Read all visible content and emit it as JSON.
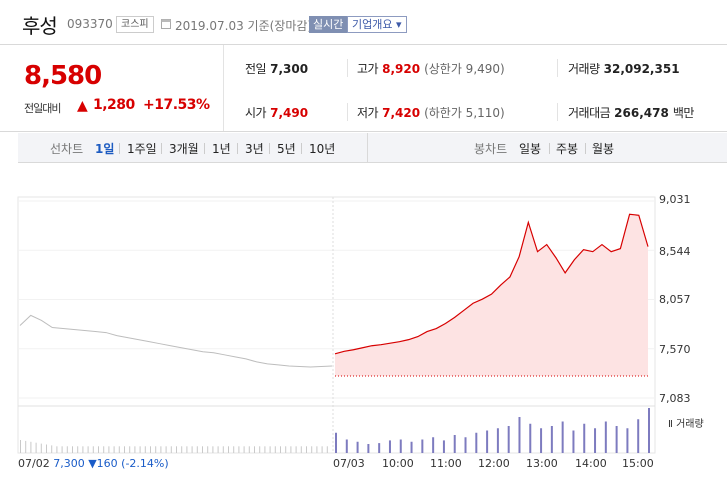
{
  "header": {
    "name": "후성",
    "code": "093370",
    "market": "코스피",
    "date": "2019.07.03",
    "date_suffix": "기준(장마감)",
    "realtime_button": "실시간",
    "company_button": "기업개요 ▾"
  },
  "quote": {
    "price": "8,580",
    "change_label": "전일대비",
    "change_arrow": "▲",
    "change_value": "1,280",
    "change_rate": "+17.53%",
    "prev_close_label": "전일",
    "prev_close": "7,300",
    "high_label": "고가",
    "high": "8,920",
    "upper_limit": "(상한가 9,490)",
    "volume_label": "거래량",
    "volume": "32,092,351",
    "open_label": "시가",
    "open": "7,490",
    "low_label": "저가",
    "low": "7,420",
    "lower_limit": "(하한가 5,110)",
    "amount_label": "거래대금",
    "amount": "266,478",
    "amount_unit": "백만"
  },
  "tabs": {
    "line_title": "선차트",
    "line_tabs": [
      "1일",
      "1주일",
      "3개월",
      "1년",
      "3년",
      "5년",
      "10년"
    ],
    "active": "1일",
    "candle_title": "봉차트",
    "candle_tabs": [
      "일봉",
      "주봉",
      "월봉"
    ]
  },
  "colors": {
    "up": "#d70000",
    "down": "#1a5cc8",
    "link": "#1c5bc1",
    "fill": "#fde3e3"
  },
  "chart_data": {
    "type": "line",
    "y_ticks": [
      "9,031",
      "8,544",
      "8,057",
      "7,570",
      "7,083"
    ],
    "ylim": [
      7083,
      9031
    ],
    "x_ticks": [
      "07/03",
      "10:00",
      "11:00",
      "12:00",
      "13:00",
      "14:00",
      "15:00"
    ],
    "volume_legend": "거래량",
    "baseline": 7300,
    "series": [
      {
        "values": [
          7520,
          7545,
          7560,
          7580,
          7600,
          7610,
          7625,
          7640,
          7660,
          7690,
          7740,
          7770,
          7820,
          7880,
          7950,
          8020,
          8060,
          8110,
          8200,
          8280,
          8480,
          8820,
          8530,
          8600,
          8470,
          8320,
          8450,
          8550,
          8530,
          8600,
          8530,
          8560,
          8900,
          8890,
          8580
        ]
      },
      {
        "values": [
          7800,
          7900,
          7850,
          7780,
          7770,
          7760,
          7750,
          7740,
          7730,
          7700,
          7680,
          7660,
          7640,
          7620,
          7600,
          7580,
          7560,
          7540,
          7530,
          7510,
          7490,
          7470,
          7440,
          7420,
          7410,
          7400,
          7395,
          7390,
          7395,
          7400
        ]
      }
    ],
    "volume": [
      0.45,
      0.3,
      0.25,
      0.2,
      0.22,
      0.28,
      0.3,
      0.25,
      0.3,
      0.35,
      0.28,
      0.4,
      0.35,
      0.45,
      0.5,
      0.55,
      0.6,
      0.8,
      0.65,
      0.55,
      0.6,
      0.7,
      0.5,
      0.65,
      0.55,
      0.7,
      0.6,
      0.55,
      0.75,
      1.0
    ],
    "prev_day": {
      "date": "07/02",
      "close": "7,300",
      "arrow": "▼",
      "change": "160",
      "rate": "(-2.14%)"
    }
  }
}
